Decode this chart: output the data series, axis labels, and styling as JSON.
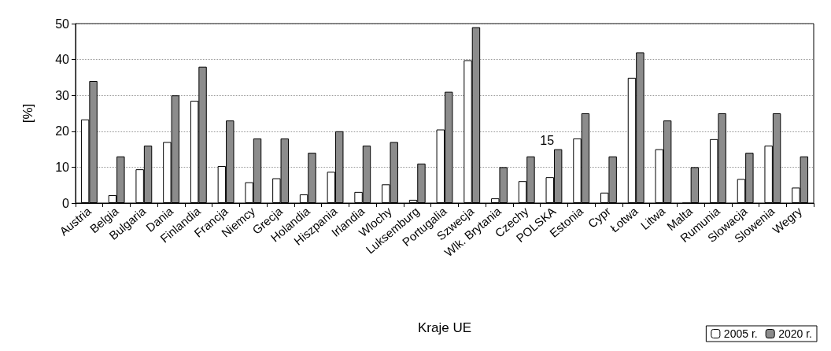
{
  "chart_data": {
    "type": "bar",
    "xlabel": "Kraje UE",
    "ylabel": "[%]",
    "categories": [
      "Austria",
      "Belgia",
      "Bulgaria",
      "Dania",
      "Finlandia",
      "Francja",
      "Niemcy",
      "Grecja",
      "Holandia",
      "Hiszpania",
      "Irlandia",
      "Wlochy",
      "Luksemburg",
      "Portugalia",
      "Szwecja",
      "Wlk. Brytania",
      "Czechy",
      "POLSKA",
      "Estonia",
      "Cypr",
      "Łotwa",
      "Litwa",
      "Malta",
      "Rumunia",
      "Slowacja",
      "Slowenia",
      "Wegry"
    ],
    "series": [
      {
        "name": "2005 r.",
        "color": "#ffffff",
        "values": [
          23.3,
          2.2,
          9.4,
          17,
          28.5,
          10.3,
          5.8,
          6.9,
          2.4,
          8.7,
          3.1,
          5.2,
          0.9,
          20.5,
          39.8,
          1.3,
          6.1,
          7.2,
          18,
          2.9,
          34.9,
          15,
          0,
          17.8,
          6.7,
          16,
          4.3
        ]
      },
      {
        "name": "2020 r.",
        "color": "#8c8c8c",
        "values": [
          34,
          13,
          16,
          30,
          38,
          23,
          18,
          18,
          14,
          20,
          16,
          17,
          11,
          31,
          49,
          10,
          13,
          15,
          25,
          13,
          42,
          23,
          10,
          25,
          14,
          25,
          13
        ]
      }
    ],
    "ylim": [
      0,
      50
    ],
    "yticks": [
      0,
      10,
      20,
      30,
      40,
      50
    ],
    "grid": "y",
    "legend": "bottom right",
    "annotations": [
      {
        "text": "15",
        "x": "POLSKA",
        "y": 15
      }
    ]
  }
}
